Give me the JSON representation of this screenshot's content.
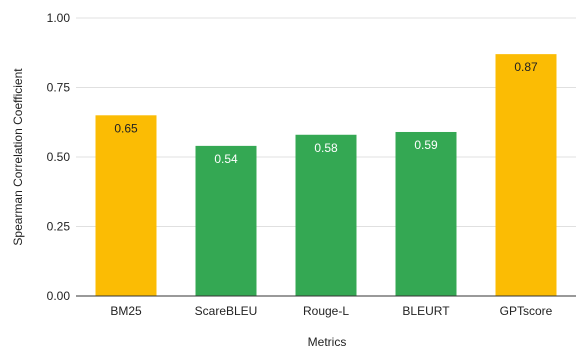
{
  "chart_data": {
    "type": "bar",
    "title": "",
    "xlabel": "Metrics",
    "ylabel": "Spearman Correlation Coefficient",
    "categories": [
      "BM25",
      "ScareBLEU",
      "Rouge-L",
      "BLEURT",
      "GPTscore"
    ],
    "values": [
      0.65,
      0.54,
      0.58,
      0.59,
      0.87
    ],
    "value_labels": [
      "0.65",
      "0.54",
      "0.58",
      "0.59",
      "0.87"
    ],
    "ylim": [
      0,
      1
    ],
    "yticks": [
      0,
      0.25,
      0.5,
      0.75,
      1
    ],
    "ytick_labels": [
      "0.00",
      "0.25",
      "0.50",
      "0.75",
      "1.00"
    ],
    "grid": true,
    "legend": "none",
    "bar_colors": [
      "#fbbc04",
      "#34a853",
      "#34a853",
      "#34a853",
      "#fbbc04"
    ],
    "label_colors": [
      "#222222",
      "#ffffff",
      "#ffffff",
      "#ffffff",
      "#222222"
    ],
    "grid_color": "#e0e0e0",
    "axis_color": "#333333"
  }
}
